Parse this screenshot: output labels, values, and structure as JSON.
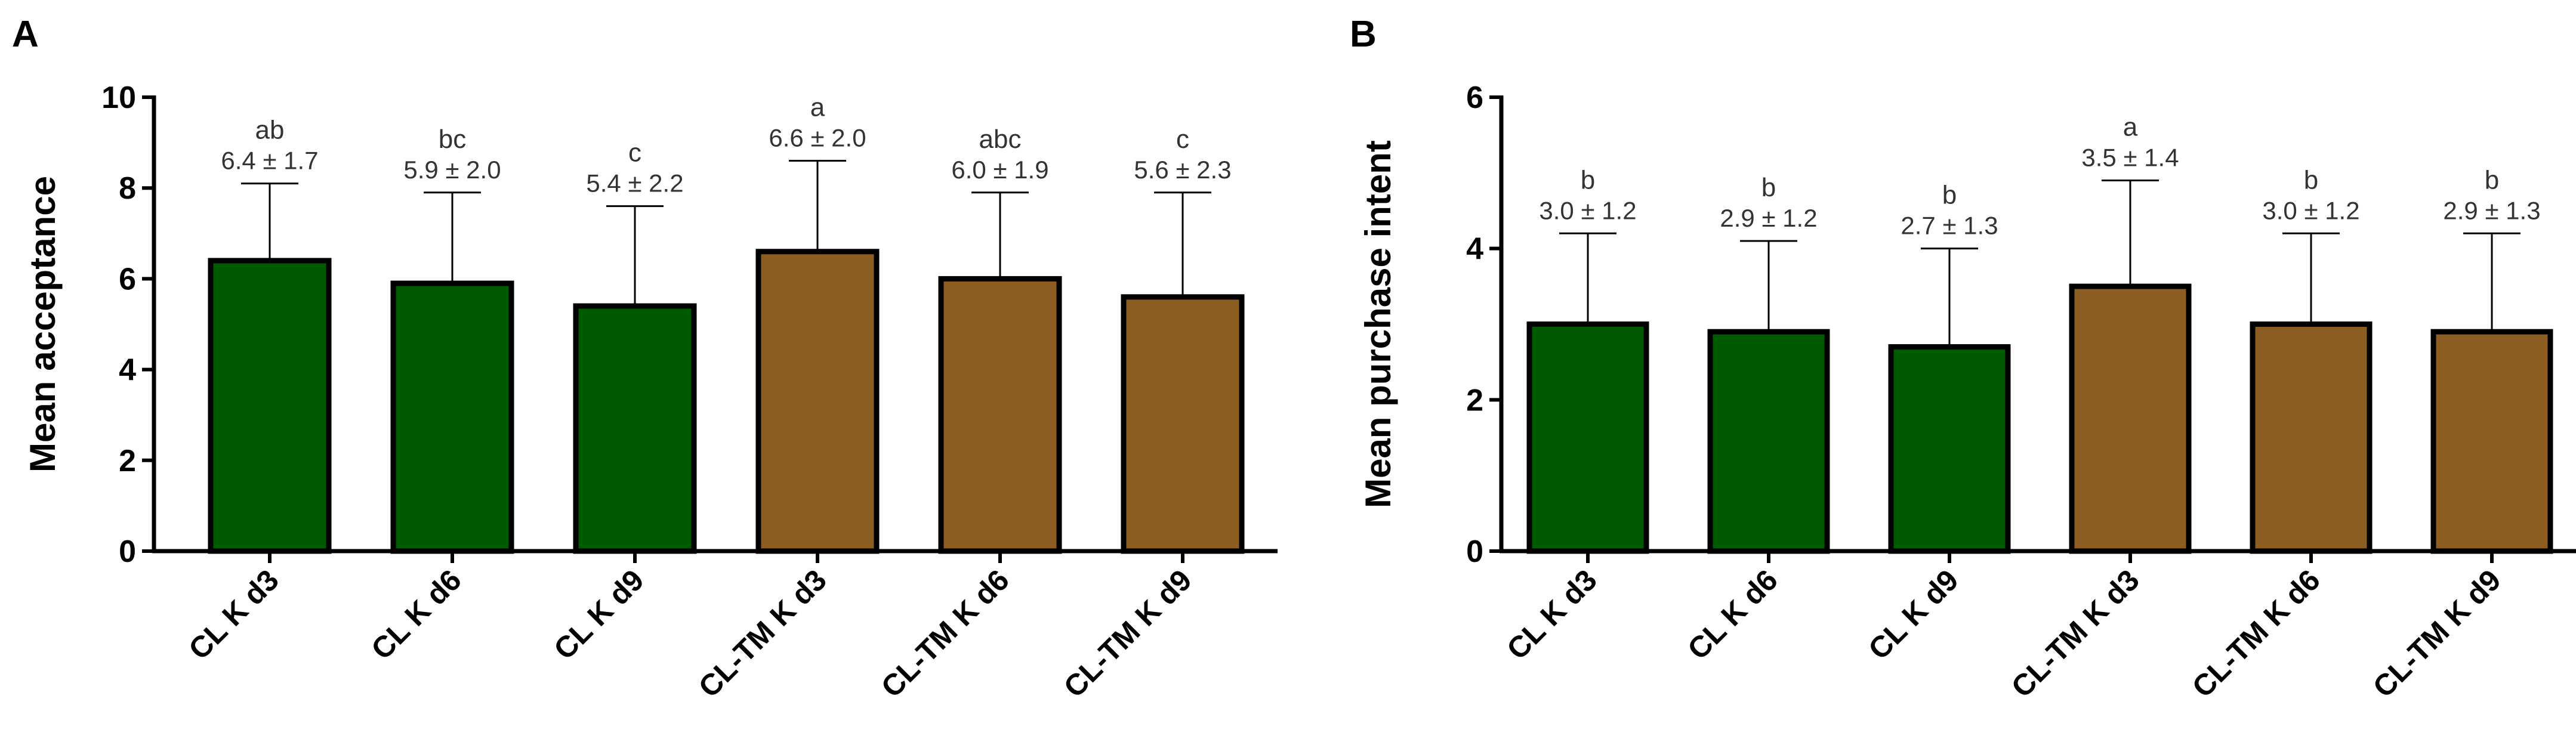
{
  "panels": [
    {
      "letter": "A",
      "chart_data": {
        "type": "bar",
        "ylabel": "Mean acceptance",
        "ylim": [
          0,
          10
        ],
        "yticks": [
          0,
          2,
          4,
          6,
          8,
          10
        ],
        "categories": [
          "CL K d3",
          "CL K d6",
          "CL K d9",
          "CL-TM K d3",
          "CL-TM K d6",
          "CL-TM K d9"
        ],
        "values": [
          6.4,
          5.9,
          5.4,
          6.6,
          6.0,
          5.6
        ],
        "errors": [
          1.7,
          2.0,
          2.2,
          2.0,
          1.9,
          2.3
        ],
        "value_labels": [
          "6.4 ± 1.7",
          "5.9 ± 2.0",
          "5.4 ± 2.2",
          "6.6 ± 2.0",
          "6.0 ± 1.9",
          "5.6 ± 2.3"
        ],
        "significance": [
          "ab",
          "bc",
          "c",
          "a",
          "abc",
          "c"
        ],
        "bar_colors": [
          "#005A00",
          "#005A00",
          "#005A00",
          "#8C5E22",
          "#8C5E22",
          "#8C5E22"
        ]
      }
    },
    {
      "letter": "B",
      "chart_data": {
        "type": "bar",
        "ylabel": "Mean purchase intent",
        "ylim": [
          0,
          6
        ],
        "yticks": [
          0,
          2,
          4,
          6
        ],
        "categories": [
          "CL K d3",
          "CL K d6",
          "CL K d9",
          "CL-TM K d3",
          "CL-TM K d6",
          "CL-TM K d9"
        ],
        "values": [
          3.0,
          2.9,
          2.7,
          3.5,
          3.0,
          2.9
        ],
        "errors": [
          1.2,
          1.2,
          1.3,
          1.4,
          1.2,
          1.3
        ],
        "value_labels": [
          "3.0 ± 1.2",
          "2.9 ± 1.2",
          "2.7 ± 1.3",
          "3.5 ± 1.4",
          "3.0 ± 1.2",
          "2.9 ± 1.3"
        ],
        "significance": [
          "b",
          "b",
          "b",
          "a",
          "b",
          "b"
        ],
        "bar_colors": [
          "#005A00",
          "#005A00",
          "#005A00",
          "#8C5E22",
          "#8C5E22",
          "#8C5E22"
        ]
      }
    }
  ]
}
